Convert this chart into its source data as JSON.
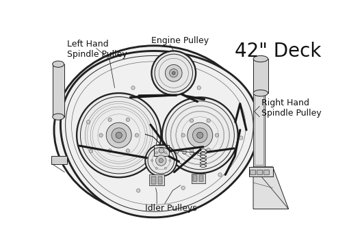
{
  "title": "42\" Deck",
  "label_lh_spindle": "Left Hand\nSpindle Pulley",
  "label_engine": "Engine Pulley",
  "label_rh_spindle": "Right Hand\nSpindle Pulley",
  "label_idler": "Idler Pulleys",
  "bg_color": "#ffffff",
  "line_color": "#222222",
  "light_gray": "#d8d8d8",
  "mid_gray": "#b0b0b0",
  "dark_gray": "#555555",
  "title_fontsize": 20,
  "ann_fontsize": 9,
  "lw_main": 1.4,
  "lw_thin": 0.7,
  "belt_lw": 2.5
}
